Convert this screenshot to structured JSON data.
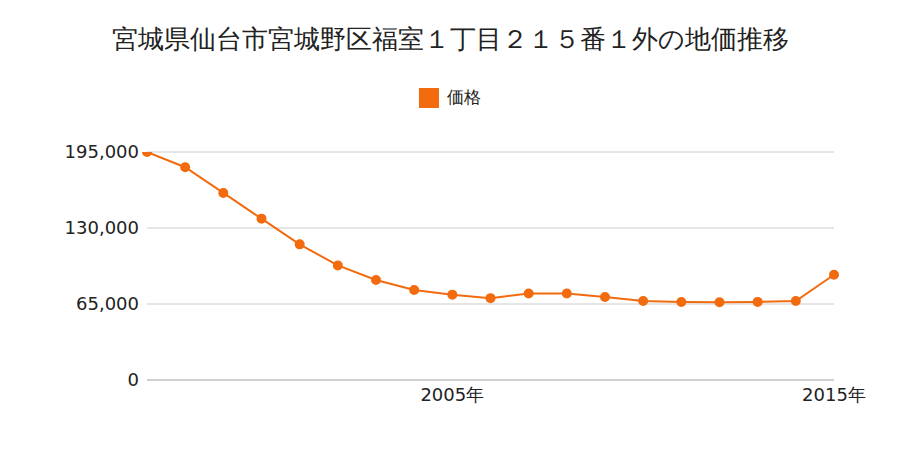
{
  "chart_data": {
    "type": "line",
    "title": "宮城県仙台市宮城野区福室１丁目２１５番１外の地価推移",
    "categories": [
      null,
      null,
      null,
      null,
      null,
      null,
      null,
      null,
      "2005年",
      null,
      null,
      null,
      null,
      null,
      null,
      null,
      null,
      null,
      "2015年"
    ],
    "series": [
      {
        "name": "価格",
        "color": "#f26b0f",
        "values": [
          195000,
          182000,
          160000,
          138000,
          116000,
          98000,
          85500,
          77000,
          73000,
          70000,
          74000,
          74000,
          71000,
          67500,
          66700,
          66500,
          66800,
          67500,
          90000
        ]
      }
    ],
    "ylim": [
      0,
      195000
    ],
    "yticks": [
      0,
      {
        "value": 65000,
        "label": "65,000"
      },
      {
        "value": 130000,
        "label": "130,000"
      },
      {
        "value": 195000,
        "label": "195,000"
      }
    ],
    "grid": true,
    "marker": "circle",
    "legend": "top"
  }
}
